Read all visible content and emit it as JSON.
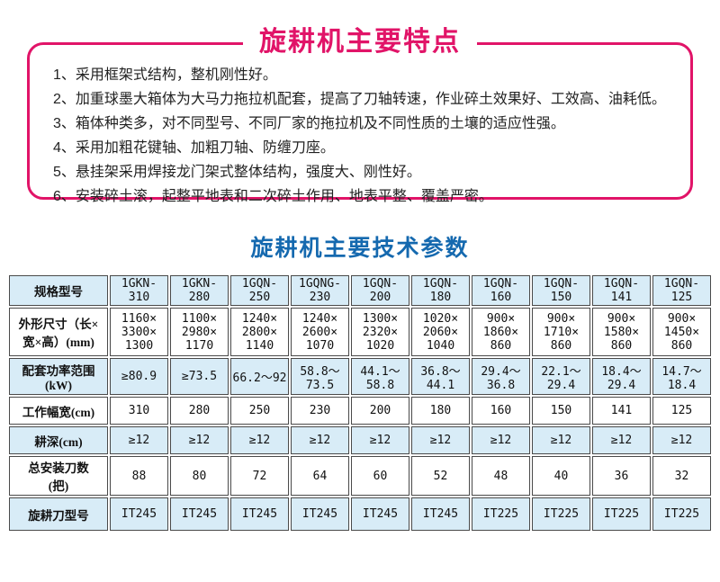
{
  "colors": {
    "accent_pink": "#e11468",
    "accent_blue": "#1569af",
    "row_highlight": "#d8ecf7",
    "table_border": "#4a4a4a",
    "text_dark": "#222222"
  },
  "features": {
    "title": "旋耕机主要特点",
    "items": [
      "1、采用框架式结构，整机刚性好。",
      "2、加重球墨大箱体为大马力拖拉机配套，提高了刀轴转速，作业碎土效果好、工效高、油耗低。",
      "3、箱体种类多，对不同型号、不同厂家的拖拉机及不同性质的土壤的适应性强。",
      "4、采用加粗花键轴、加粗刀轴、防缠刀座。",
      "5、悬挂架采用焊接龙门架式整体结构，强度大、刚性好。",
      "6、安装碎土滚，起整平地表和二次碎土作用、地表平整、覆盖严密。"
    ]
  },
  "params": {
    "title": "旋耕机主要技术参数"
  },
  "table": {
    "header": [
      "规格型号",
      "1GKN-310",
      "1GKN-280",
      "1GQN-250",
      "1GQNG-230",
      "1GQN-200",
      "1GQN-180",
      "1GQN-160",
      "1GQN-150",
      "1GQN-141",
      "1GQN-125"
    ],
    "rows": [
      {
        "label": "外形尺寸（长×\n宽×高）(mm)",
        "values": [
          "1160×\n3300×\n1300",
          "1100×\n2980×\n1170",
          "1240×\n2800×\n1140",
          "1240×\n2600×\n1070",
          "1300×\n2320×\n1020",
          "1020×\n2060×\n1040",
          "900×\n1860×\n860",
          "900×\n1710×\n860",
          "900×\n1580×\n860",
          "900×\n1450×\n860"
        ]
      },
      {
        "label": "配套功率范围\n(kW)",
        "values": [
          "≥80.9",
          "≥73.5",
          "66.2～92",
          "58.8～\n73.5",
          "44.1～\n58.8",
          "36.8～\n44.1",
          "29.4～\n36.8",
          "22.1～\n29.4",
          "18.4～\n29.4",
          "14.7～\n18.4"
        ]
      },
      {
        "label": "工作幅宽(cm)",
        "values": [
          "310",
          "280",
          "250",
          "230",
          "200",
          "180",
          "160",
          "150",
          "141",
          "125"
        ]
      },
      {
        "label": "耕深(cm)",
        "values": [
          "≥12",
          "≥12",
          "≥12",
          "≥12",
          "≥12",
          "≥12",
          "≥12",
          "≥12",
          "≥12",
          "≥12"
        ]
      },
      {
        "label": "总安装刀数\n(把)",
        "values": [
          "88",
          "80",
          "72",
          "64",
          "60",
          "52",
          "48",
          "40",
          "36",
          "32"
        ]
      },
      {
        "label": "旋耕刀型号",
        "values": [
          "IT245",
          "IT245",
          "IT245",
          "IT245",
          "IT245",
          "IT245",
          "IT225",
          "IT225",
          "IT225",
          "IT225"
        ]
      }
    ]
  }
}
